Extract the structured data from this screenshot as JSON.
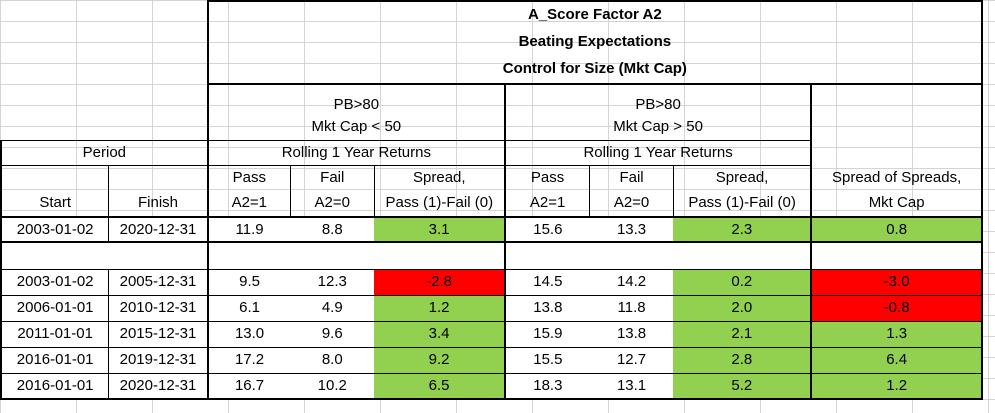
{
  "title": {
    "line1": "A_Score Factor A2",
    "line2": "Beating Expectations",
    "line3": "Control for Size (Mkt Cap)"
  },
  "group_left": {
    "line1": "PB>80",
    "line2": "Mkt Cap < 50",
    "returns": "Rolling 1 Year Returns"
  },
  "group_right": {
    "line1": "PB>80",
    "line2": "Mkt Cap > 50",
    "returns": "Rolling 1 Year Returns"
  },
  "period_label": "Period",
  "columns": {
    "start": "Start",
    "finish": "Finish",
    "pass_1": "Pass",
    "pass_2": "A2=1",
    "fail_1": "Fail",
    "fail_2": "A2=0",
    "spread_1": "Spread,",
    "spread_2": "Pass (1)-Fail (0)",
    "sos_1": "Spread of Spreads,",
    "sos_2": "Mkt Cap"
  },
  "summary_row": {
    "start": "2003-01-02",
    "finish": "2020-12-31",
    "pass_l": "11.9",
    "fail_l": "8.8",
    "spread_l": "3.1",
    "pass_r": "15.6",
    "fail_r": "13.3",
    "spread_r": "2.3",
    "sos": "0.8"
  },
  "rows": [
    {
      "start": "2003-01-02",
      "finish": "2005-12-31",
      "pass_l": "9.5",
      "fail_l": "12.3",
      "spread_l": "-2.8",
      "pass_r": "14.5",
      "fail_r": "14.2",
      "spread_r": "0.2",
      "sos": "-3.0"
    },
    {
      "start": "2006-01-01",
      "finish": "2010-12-31",
      "pass_l": "6.1",
      "fail_l": "4.9",
      "spread_l": "1.2",
      "pass_r": "13.8",
      "fail_r": "11.8",
      "spread_r": "2.0",
      "sos": "-0.8"
    },
    {
      "start": "2011-01-01",
      "finish": "2015-12-31",
      "pass_l": "13.0",
      "fail_l": "9.6",
      "spread_l": "3.4",
      "pass_r": "15.9",
      "fail_r": "13.8",
      "spread_r": "2.1",
      "sos": "1.3"
    },
    {
      "start": "2016-01-01",
      "finish": "2019-12-31",
      "pass_l": "17.2",
      "fail_l": "8.0",
      "spread_l": "9.2",
      "pass_r": "15.5",
      "fail_r": "12.7",
      "spread_r": "2.8",
      "sos": "6.4"
    },
    {
      "start": "2016-01-01",
      "finish": "2020-12-31",
      "pass_l": "16.7",
      "fail_l": "10.2",
      "spread_l": "6.5",
      "pass_r": "18.3",
      "fail_r": "13.1",
      "spread_r": "5.2",
      "sos": "1.2"
    }
  ],
  "colors": {
    "positive": "#92d050",
    "negative": "#ff0000"
  }
}
